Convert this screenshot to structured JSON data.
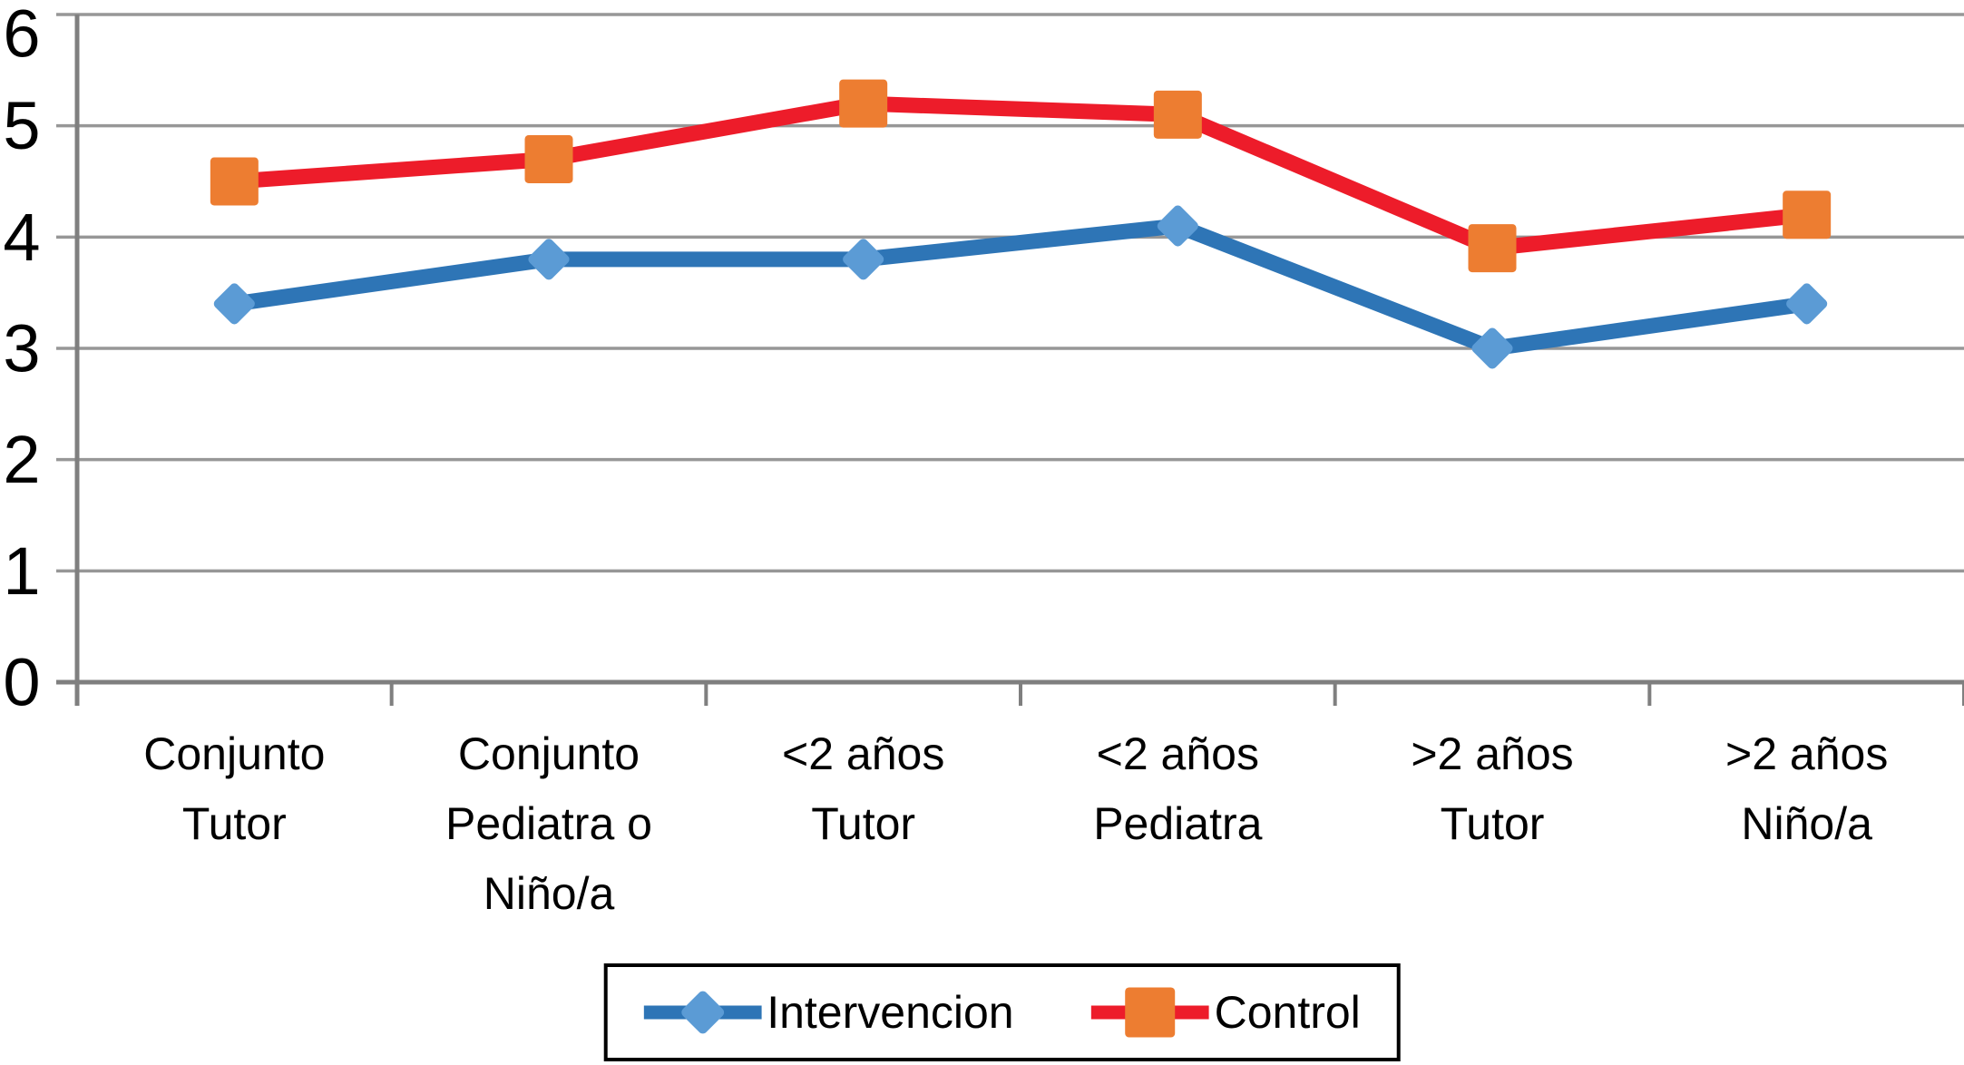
{
  "chart_data": {
    "type": "line",
    "categories": [
      [
        "Conjunto",
        "Tutor"
      ],
      [
        "Conjunto",
        "Pediatra o",
        "Niño/a"
      ],
      [
        "<2 años",
        "Tutor"
      ],
      [
        "<2 años",
        "Pediatra"
      ],
      [
        ">2 años",
        "Tutor"
      ],
      [
        ">2 años",
        "Niño/a"
      ]
    ],
    "series": [
      {
        "name": "Intervencion",
        "values": [
          3.4,
          3.8,
          3.8,
          4.1,
          3.0,
          3.4
        ],
        "line_color": "#2E75B6",
        "marker_color": "#5B9BD5",
        "marker": "diamond"
      },
      {
        "name": "Control",
        "values": [
          4.5,
          4.7,
          5.2,
          5.1,
          3.9,
          4.2
        ],
        "line_color": "#ED1C2A",
        "marker_color": "#ED7D31",
        "marker": "square"
      }
    ],
    "title": "",
    "xlabel": "",
    "ylabel": "",
    "ylim": [
      0,
      6
    ],
    "yticks": [
      0,
      1,
      2,
      3,
      4,
      5,
      6
    ],
    "grid": true,
    "legend_position": "bottom",
    "colors": {
      "gridline": "#979797",
      "axis": "#7F7F7F",
      "text": "#000000",
      "background": "#FFFFFF"
    }
  }
}
